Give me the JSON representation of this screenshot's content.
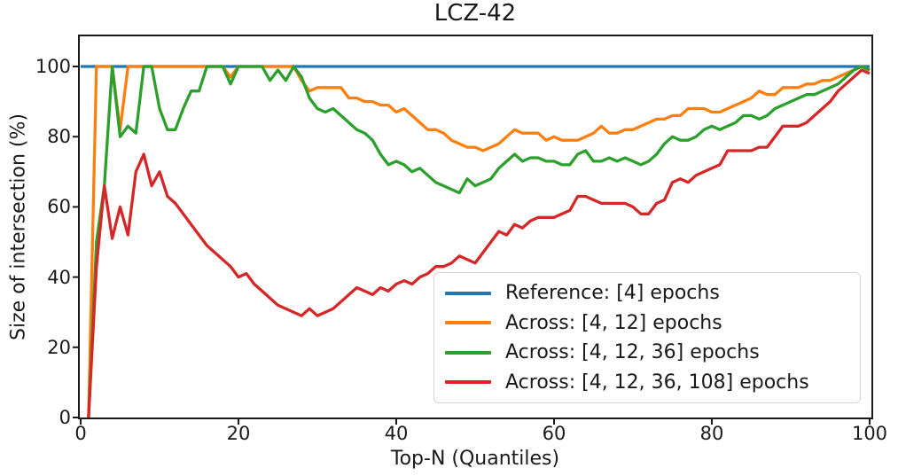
{
  "chart": {
    "title": "LCZ-42",
    "xlabel": "Top-N (Quantiles)",
    "ylabel": "Size of intersection (%)"
  },
  "legend": {
    "position": "lower right",
    "entries": [
      {
        "label": "Reference: [4] epochs",
        "color": "#1f77b4"
      },
      {
        "label": "Across: [4, 12] epochs",
        "color": "#ff7f0e"
      },
      {
        "label": "Across: [4, 12, 36] epochs",
        "color": "#2ca02c"
      },
      {
        "label": "Across: [4, 12, 36, 108] epochs",
        "color": "#d62728"
      }
    ]
  },
  "chart_data": {
    "type": "line",
    "title": "LCZ-42",
    "xlabel": "Top-N (Quantiles)",
    "ylabel": "Size of intersection (%)",
    "xlim": [
      0,
      100
    ],
    "ylim": [
      0,
      109
    ],
    "grid": false,
    "x_ticks": [
      0,
      20,
      40,
      60,
      80,
      100
    ],
    "y_ticks": [
      0,
      20,
      40,
      60,
      80,
      100
    ],
    "series": [
      {
        "name": "Reference: [4] epochs",
        "color": "#1f77b4",
        "points": [
          [
            0,
            100
          ],
          [
            100,
            100
          ]
        ]
      },
      {
        "name": "Across: [4, 12] epochs",
        "color": "#ff7f0e",
        "points": [
          [
            1,
            0
          ],
          [
            2,
            100
          ],
          [
            3,
            100
          ],
          [
            4,
            100
          ],
          [
            5,
            82
          ],
          [
            6,
            100
          ],
          [
            7,
            100
          ],
          [
            8,
            100
          ],
          [
            9,
            100
          ],
          [
            10,
            100
          ],
          [
            11,
            100
          ],
          [
            12,
            100
          ],
          [
            13,
            100
          ],
          [
            14,
            100
          ],
          [
            15,
            100
          ],
          [
            16,
            100
          ],
          [
            17,
            100
          ],
          [
            18,
            100
          ],
          [
            19,
            97
          ],
          [
            20,
            100
          ],
          [
            21,
            100
          ],
          [
            22,
            100
          ],
          [
            23,
            100
          ],
          [
            24,
            100
          ],
          [
            25,
            100
          ],
          [
            26,
            100
          ],
          [
            27,
            100
          ],
          [
            28,
            96
          ],
          [
            29,
            93
          ],
          [
            30,
            94
          ],
          [
            31,
            94
          ],
          [
            32,
            94
          ],
          [
            33,
            94
          ],
          [
            34,
            91
          ],
          [
            35,
            91
          ],
          [
            36,
            90
          ],
          [
            37,
            90
          ],
          [
            38,
            89
          ],
          [
            39,
            89
          ],
          [
            40,
            87
          ],
          [
            41,
            88
          ],
          [
            42,
            86
          ],
          [
            43,
            84
          ],
          [
            44,
            82
          ],
          [
            45,
            82
          ],
          [
            46,
            81
          ],
          [
            47,
            79
          ],
          [
            48,
            78
          ],
          [
            49,
            77
          ],
          [
            50,
            77
          ],
          [
            51,
            76
          ],
          [
            52,
            77
          ],
          [
            53,
            78
          ],
          [
            54,
            80
          ],
          [
            55,
            82
          ],
          [
            56,
            81
          ],
          [
            57,
            81
          ],
          [
            58,
            81
          ],
          [
            59,
            79
          ],
          [
            60,
            80
          ],
          [
            61,
            79
          ],
          [
            62,
            79
          ],
          [
            63,
            79
          ],
          [
            64,
            80
          ],
          [
            65,
            81
          ],
          [
            66,
            83
          ],
          [
            67,
            81
          ],
          [
            68,
            81
          ],
          [
            69,
            82
          ],
          [
            70,
            82
          ],
          [
            71,
            83
          ],
          [
            72,
            84
          ],
          [
            73,
            85
          ],
          [
            74,
            85
          ],
          [
            75,
            86
          ],
          [
            76,
            86
          ],
          [
            77,
            88
          ],
          [
            78,
            88
          ],
          [
            79,
            88
          ],
          [
            80,
            87
          ],
          [
            81,
            87
          ],
          [
            82,
            88
          ],
          [
            83,
            89
          ],
          [
            84,
            90
          ],
          [
            85,
            91
          ],
          [
            86,
            93
          ],
          [
            87,
            92
          ],
          [
            88,
            92
          ],
          [
            89,
            94
          ],
          [
            90,
            94
          ],
          [
            91,
            94
          ],
          [
            92,
            95
          ],
          [
            93,
            95
          ],
          [
            94,
            96
          ],
          [
            95,
            96
          ],
          [
            96,
            97
          ],
          [
            97,
            98
          ],
          [
            98,
            99
          ],
          [
            99,
            100
          ],
          [
            100,
            99
          ]
        ]
      },
      {
        "name": "Across: [4, 12, 36] epochs",
        "color": "#2ca02c",
        "points": [
          [
            1,
            0
          ],
          [
            2,
            50
          ],
          [
            3,
            66
          ],
          [
            4,
            100
          ],
          [
            5,
            80
          ],
          [
            6,
            83
          ],
          [
            7,
            81
          ],
          [
            8,
            100
          ],
          [
            9,
            100
          ],
          [
            10,
            88
          ],
          [
            11,
            82
          ],
          [
            12,
            82
          ],
          [
            13,
            88
          ],
          [
            14,
            93
          ],
          [
            15,
            93
          ],
          [
            16,
            100
          ],
          [
            17,
            100
          ],
          [
            18,
            100
          ],
          [
            19,
            95
          ],
          [
            20,
            100
          ],
          [
            21,
            100
          ],
          [
            22,
            100
          ],
          [
            23,
            100
          ],
          [
            24,
            96
          ],
          [
            25,
            99
          ],
          [
            26,
            96
          ],
          [
            27,
            100
          ],
          [
            28,
            97
          ],
          [
            29,
            91
          ],
          [
            30,
            88
          ],
          [
            31,
            87
          ],
          [
            32,
            88
          ],
          [
            33,
            86
          ],
          [
            34,
            84
          ],
          [
            35,
            82
          ],
          [
            36,
            81
          ],
          [
            37,
            79
          ],
          [
            38,
            75
          ],
          [
            39,
            72
          ],
          [
            40,
            73
          ],
          [
            41,
            72
          ],
          [
            42,
            70
          ],
          [
            43,
            71
          ],
          [
            44,
            69
          ],
          [
            45,
            67
          ],
          [
            46,
            66
          ],
          [
            47,
            65
          ],
          [
            48,
            64
          ],
          [
            49,
            68
          ],
          [
            50,
            66
          ],
          [
            51,
            67
          ],
          [
            52,
            68
          ],
          [
            53,
            71
          ],
          [
            54,
            73
          ],
          [
            55,
            75
          ],
          [
            56,
            73
          ],
          [
            57,
            74
          ],
          [
            58,
            74
          ],
          [
            59,
            73
          ],
          [
            60,
            73
          ],
          [
            61,
            72
          ],
          [
            62,
            72
          ],
          [
            63,
            75
          ],
          [
            64,
            76
          ],
          [
            65,
            73
          ],
          [
            66,
            73
          ],
          [
            67,
            74
          ],
          [
            68,
            73
          ],
          [
            69,
            74
          ],
          [
            70,
            73
          ],
          [
            71,
            72
          ],
          [
            72,
            73
          ],
          [
            73,
            75
          ],
          [
            74,
            78
          ],
          [
            75,
            80
          ],
          [
            76,
            79
          ],
          [
            77,
            79
          ],
          [
            78,
            80
          ],
          [
            79,
            82
          ],
          [
            80,
            83
          ],
          [
            81,
            82
          ],
          [
            82,
            83
          ],
          [
            83,
            84
          ],
          [
            84,
            86
          ],
          [
            85,
            86
          ],
          [
            86,
            85
          ],
          [
            87,
            86
          ],
          [
            88,
            88
          ],
          [
            89,
            89
          ],
          [
            90,
            90
          ],
          [
            91,
            91
          ],
          [
            92,
            92
          ],
          [
            93,
            92
          ],
          [
            94,
            93
          ],
          [
            95,
            94
          ],
          [
            96,
            95
          ],
          [
            97,
            97
          ],
          [
            98,
            99
          ],
          [
            99,
            100
          ],
          [
            100,
            99
          ]
        ]
      },
      {
        "name": "Across: [4, 12, 36, 108] epochs",
        "color": "#d62728",
        "points": [
          [
            1,
            0
          ],
          [
            2,
            43
          ],
          [
            3,
            66
          ],
          [
            4,
            51
          ],
          [
            5,
            60
          ],
          [
            6,
            52
          ],
          [
            7,
            70
          ],
          [
            8,
            75
          ],
          [
            9,
            66
          ],
          [
            10,
            70
          ],
          [
            11,
            63
          ],
          [
            12,
            61
          ],
          [
            13,
            58
          ],
          [
            14,
            55
          ],
          [
            15,
            52
          ],
          [
            16,
            49
          ],
          [
            17,
            47
          ],
          [
            18,
            45
          ],
          [
            19,
            43
          ],
          [
            20,
            40
          ],
          [
            21,
            41
          ],
          [
            22,
            38
          ],
          [
            23,
            36
          ],
          [
            24,
            34
          ],
          [
            25,
            32
          ],
          [
            26,
            31
          ],
          [
            27,
            30
          ],
          [
            28,
            29
          ],
          [
            29,
            31
          ],
          [
            30,
            29
          ],
          [
            31,
            30
          ],
          [
            32,
            31
          ],
          [
            33,
            33
          ],
          [
            34,
            35
          ],
          [
            35,
            37
          ],
          [
            36,
            36
          ],
          [
            37,
            35
          ],
          [
            38,
            37
          ],
          [
            39,
            36
          ],
          [
            40,
            38
          ],
          [
            41,
            39
          ],
          [
            42,
            38
          ],
          [
            43,
            40
          ],
          [
            44,
            41
          ],
          [
            45,
            43
          ],
          [
            46,
            43
          ],
          [
            47,
            44
          ],
          [
            48,
            46
          ],
          [
            49,
            45
          ],
          [
            50,
            44
          ],
          [
            51,
            47
          ],
          [
            52,
            50
          ],
          [
            53,
            53
          ],
          [
            54,
            52
          ],
          [
            55,
            55
          ],
          [
            56,
            54
          ],
          [
            57,
            56
          ],
          [
            58,
            57
          ],
          [
            59,
            57
          ],
          [
            60,
            57
          ],
          [
            61,
            58
          ],
          [
            62,
            59
          ],
          [
            63,
            63
          ],
          [
            64,
            63
          ],
          [
            65,
            62
          ],
          [
            66,
            61
          ],
          [
            67,
            61
          ],
          [
            68,
            61
          ],
          [
            69,
            61
          ],
          [
            70,
            60
          ],
          [
            71,
            58
          ],
          [
            72,
            58
          ],
          [
            73,
            61
          ],
          [
            74,
            62
          ],
          [
            75,
            67
          ],
          [
            76,
            68
          ],
          [
            77,
            67
          ],
          [
            78,
            69
          ],
          [
            79,
            70
          ],
          [
            80,
            71
          ],
          [
            81,
            72
          ],
          [
            82,
            76
          ],
          [
            83,
            76
          ],
          [
            84,
            76
          ],
          [
            85,
            76
          ],
          [
            86,
            77
          ],
          [
            87,
            77
          ],
          [
            88,
            80
          ],
          [
            89,
            83
          ],
          [
            90,
            83
          ],
          [
            91,
            83
          ],
          [
            92,
            84
          ],
          [
            93,
            86
          ],
          [
            94,
            88
          ],
          [
            95,
            90
          ],
          [
            96,
            93
          ],
          [
            97,
            95
          ],
          [
            98,
            97
          ],
          [
            99,
            99
          ],
          [
            100,
            98
          ]
        ]
      }
    ]
  }
}
